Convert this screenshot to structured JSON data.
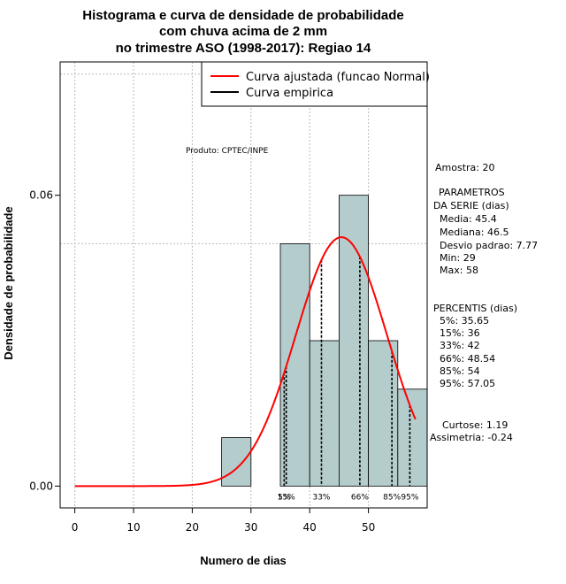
{
  "chart_data": {
    "type": "histogram",
    "title_lines": [
      "Histograma e curva de densidade de probabilidade",
      "com chuva acima de 2 mm",
      "no trimestre ASO (1998-2017): Regiao 14"
    ],
    "xlabel": "Numero de dias",
    "ylabel": "Densidade de probabilidade",
    "xlim": [
      -2.5,
      60
    ],
    "ylim": [
      -0.0045,
      0.0875
    ],
    "x_ticks": [
      0,
      10,
      20,
      30,
      40,
      50
    ],
    "y_ticks": [
      {
        "value": 0.0,
        "label": "0.00"
      },
      {
        "value": 0.06,
        "label": "0.06"
      }
    ],
    "grid": true,
    "grid_x": [
      0,
      10,
      20,
      30,
      40,
      50
    ],
    "grid_y": [
      0.05,
      0.085
    ],
    "bins": [
      {
        "start": 25,
        "end": 30,
        "density": 0.01
      },
      {
        "start": 35,
        "end": 40,
        "density": 0.05
      },
      {
        "start": 40,
        "end": 45,
        "density": 0.03
      },
      {
        "start": 45,
        "end": 50,
        "density": 0.06
      },
      {
        "start": 50,
        "end": 55,
        "density": 0.03
      },
      {
        "start": 55,
        "end": 60,
        "density": 0.02
      }
    ],
    "bar_color": "#b4cccc",
    "normal_fit": {
      "mean": 45.4,
      "sd": 7.77,
      "x_range": [
        0,
        58
      ],
      "color": "#ff0000"
    },
    "percentile_lines": [
      {
        "x": 35.65,
        "label": "5%"
      },
      {
        "x": 36,
        "label": "15%"
      },
      {
        "x": 42,
        "label": "33%"
      },
      {
        "x": 48.54,
        "label": "66%"
      },
      {
        "x": 54,
        "label": "85%"
      },
      {
        "x": 57.05,
        "label": "95%"
      }
    ],
    "legend": {
      "position": "top-right",
      "entries": [
        {
          "label": "Curva ajustada (funcao Normal)",
          "color": "#ff0000"
        },
        {
          "label": "Curva empirica",
          "color": "#000000"
        }
      ]
    },
    "product_note": "Produto: CPTEC/INPE",
    "stats_lines": [
      "Amostra: 20",
      "PARAMETROS",
      "DA SERIE (dias)",
      "Media: 45.4",
      "Mediana: 46.5",
      "Desvio padrao: 7.77",
      "Min: 29",
      "Max: 58",
      "PERCENTIS (dias)",
      "5%: 35.65",
      "15%: 36",
      "33%: 42",
      "66%: 48.54",
      "85%: 54",
      "95%: 57.05",
      "Curtose: 1.19",
      "Assimetria: -0.24"
    ]
  }
}
